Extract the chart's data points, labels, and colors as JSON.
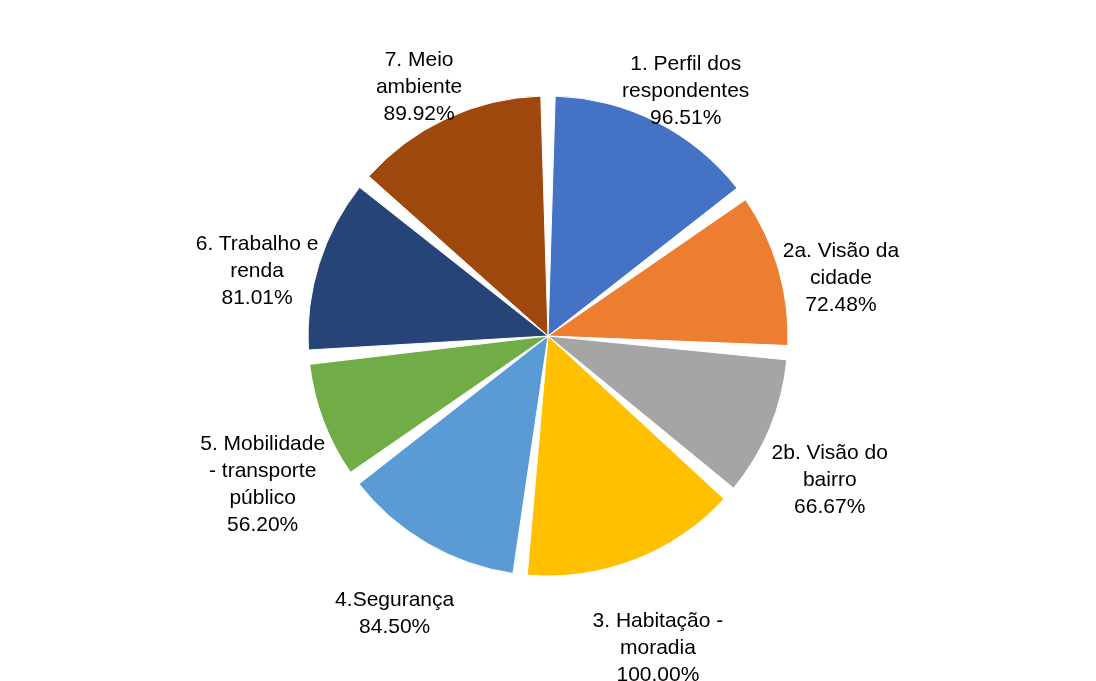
{
  "chart_data": {
    "type": "pie",
    "categories": [
      "1. Perfil dos respondentes",
      "2a. Visão da cidade",
      "2b. Visão do bairro",
      "3. Habitação - moradia",
      "4.Segurança",
      "5. Mobilidade - transporte público",
      "6. Trabalho e renda",
      "7. Meio ambiente"
    ],
    "values": [
      96.51,
      72.48,
      66.67,
      100.0,
      84.5,
      56.2,
      81.01,
      89.92
    ],
    "value_labels": [
      "96.51%",
      "72.48%",
      "66.67%",
      "100.00%",
      "84.50%",
      "56.20%",
      "81.01%",
      "89.92%"
    ],
    "colors": [
      "#4472c4",
      "#ed7d31",
      "#a5a5a5",
      "#ffc000",
      "#5b9bd5",
      "#70ad47",
      "#264478",
      "#9e480e"
    ],
    "legend": false
  }
}
